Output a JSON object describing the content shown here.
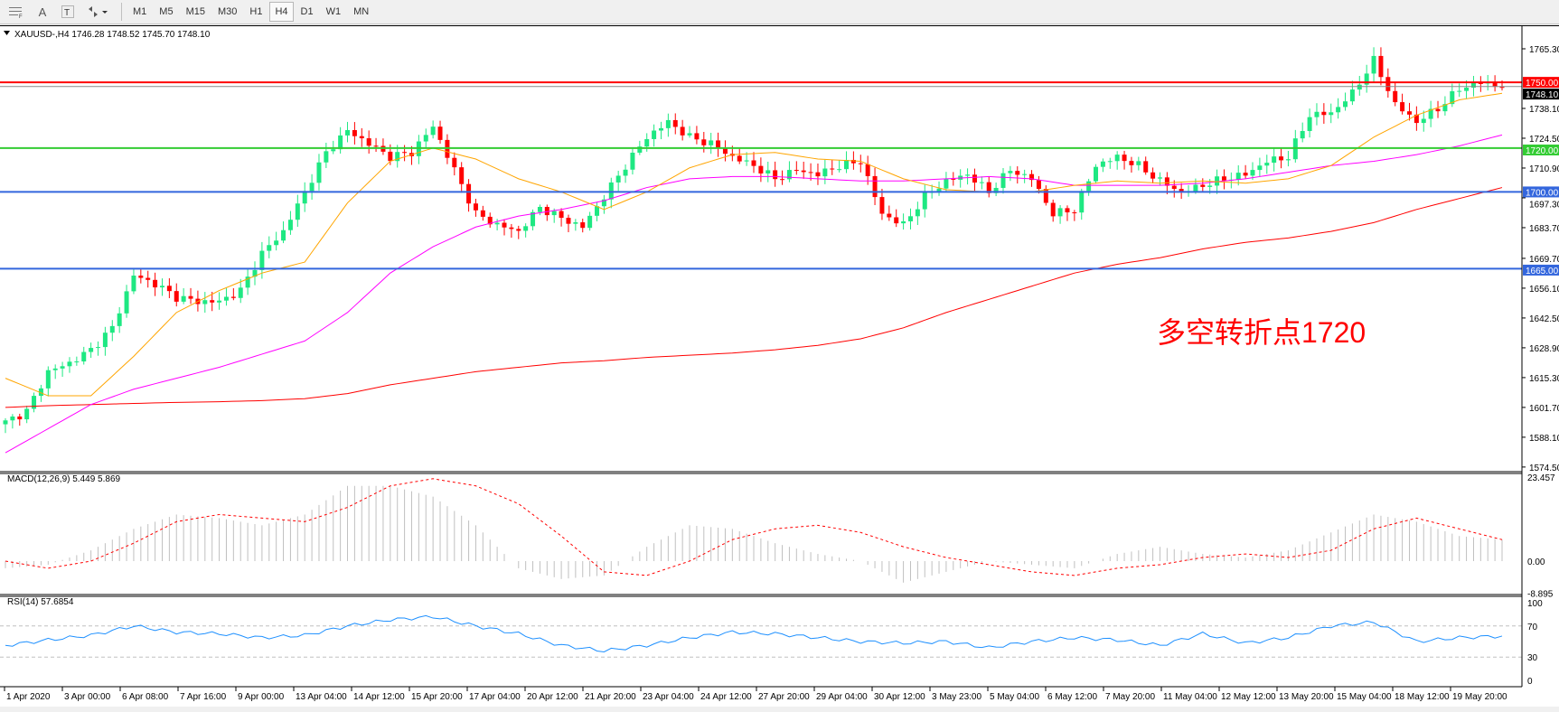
{
  "toolbar": {
    "icons": [
      "periods-grid-icon",
      "text-icon",
      "text-label-icon",
      "arrows-icon"
    ],
    "text_tool_label": "A",
    "timeframes": [
      "M1",
      "M5",
      "M15",
      "M30",
      "H1",
      "H4",
      "D1",
      "W1",
      "MN"
    ],
    "active_timeframe": "H4"
  },
  "chart_header": "XAUUSD-,H4  1746.28 1748.52 1745.70 1748.10",
  "annotation": "多空转折点1720",
  "macd_label": "MACD(12,26,9) 5.449 5.869",
  "rsi_label": "RSI(14) 57.6854",
  "colors": {
    "bull": "#1ee882",
    "bear": "#ff0000",
    "ma_fast": "#ffa500",
    "ma_mid": "#ff00ff",
    "ma_slow": "#ff0000",
    "rsi": "#1e90ff",
    "macd_hist": "#c0c0c0",
    "macd_signal": "#ff0000"
  },
  "chart_data": {
    "type": "candlestick",
    "symbol": "XAUUSD-",
    "timeframe": "H4",
    "price_ylim": [
      1574.5,
      1765.3
    ],
    "price_ticks": [
      "1765.30",
      "1738.10",
      "1724.50",
      "1710.90",
      "1697.30",
      "1683.70",
      "1669.70",
      "1656.10",
      "1642.50",
      "1628.90",
      "1615.30",
      "1601.70",
      "1588.10",
      "1574.50"
    ],
    "levels": [
      {
        "value": 1750.0,
        "label": "1750.00",
        "color": "#ff0000"
      },
      {
        "value": 1720.0,
        "label": "1720.00",
        "color": "#33cc33"
      },
      {
        "value": 1700.0,
        "label": "1700.00",
        "color": "#3366dd"
      },
      {
        "value": 1665.0,
        "label": "1665.00",
        "color": "#3366dd"
      }
    ],
    "current_price": {
      "value": 1748.1,
      "label": "1748.10"
    },
    "closes": [
      1595,
      1600,
      1618,
      1622,
      1628,
      1638,
      1662,
      1658,
      1652,
      1650,
      1650,
      1655,
      1672,
      1682,
      1700,
      1718,
      1728,
      1722,
      1716,
      1718,
      1730,
      1710,
      1690,
      1685,
      1682,
      1693,
      1688,
      1684,
      1698,
      1712,
      1725,
      1732,
      1725,
      1722,
      1716,
      1712,
      1706,
      1710,
      1708,
      1712,
      1714,
      1690,
      1685,
      1698,
      1705,
      1708,
      1700,
      1710,
      1706,
      1690,
      1692,
      1712,
      1716,
      1712,
      1705,
      1700,
      1703,
      1706,
      1708,
      1714,
      1716,
      1735,
      1736,
      1745,
      1760,
      1740,
      1732,
      1738,
      1747,
      1750,
      1748.1
    ],
    "ma_slow": [
      1601.7,
      1602.5,
      1603,
      1603.5,
      1604,
      1604.3,
      1604.8,
      1605.7,
      1608,
      1612,
      1615,
      1618,
      1620,
      1622,
      1623,
      1624.5,
      1625.5,
      1626.5,
      1628,
      1630,
      1633,
      1638,
      1645,
      1651,
      1657,
      1663,
      1667,
      1670,
      1674,
      1677,
      1679,
      1682,
      1686,
      1692,
      1697,
      1702
    ],
    "ma_mid": [
      1581,
      1592,
      1603,
      1610,
      1615,
      1620,
      1626,
      1632,
      1645,
      1663,
      1675,
      1684,
      1689,
      1692,
      1696,
      1702,
      1706,
      1707,
      1707,
      1706,
      1705,
      1705,
      1706,
      1707,
      1706,
      1703,
      1703,
      1703,
      1704,
      1706,
      1709,
      1712,
      1714,
      1717,
      1721,
      1726
    ],
    "ma_fast": [
      1615,
      1607,
      1607,
      1625,
      1645,
      1655,
      1663,
      1668,
      1695,
      1714,
      1720,
      1715,
      1706,
      1700,
      1692,
      1700,
      1711,
      1717,
      1718,
      1715,
      1714,
      1706,
      1701,
      1700,
      1700,
      1703,
      1705,
      1704,
      1705,
      1704,
      1706,
      1712,
      1725,
      1735,
      1742,
      1745
    ],
    "macd": {
      "ylim": [
        -8.895,
        23.457
      ],
      "ticks": [
        "23.457",
        "0.00",
        "-8.895"
      ],
      "histogram": [
        -2,
        -1,
        3,
        9,
        13,
        12,
        10,
        13,
        21,
        21,
        18,
        10,
        -2,
        -5,
        -4,
        4,
        10,
        9,
        5,
        2,
        0,
        -6,
        -3,
        0,
        -1,
        -2,
        2,
        4,
        2,
        1,
        3,
        8,
        13,
        11,
        7,
        6
      ],
      "signal": [
        0,
        -2,
        0,
        5,
        11,
        13,
        12,
        11,
        15,
        21,
        23,
        21,
        16,
        7,
        -3,
        -4,
        0,
        6,
        9,
        10,
        8,
        4,
        1,
        -1,
        -3,
        -4,
        -2,
        -1,
        1,
        2,
        1,
        3,
        9,
        12,
        9,
        6
      ]
    },
    "rsi": {
      "ylim": [
        0,
        100
      ],
      "ticks": [
        "100",
        "70",
        "30",
        "0"
      ],
      "levels": [
        70,
        30
      ],
      "values": [
        45,
        52,
        58,
        70,
        62,
        60,
        55,
        58,
        70,
        78,
        82,
        70,
        60,
        45,
        38,
        45,
        55,
        62,
        60,
        55,
        50,
        48,
        50,
        42,
        50,
        55,
        52,
        45,
        60,
        48,
        55,
        70,
        75,
        50,
        55,
        57
      ]
    },
    "x_labels": [
      "1 Apr 2020",
      "3 Apr 00:00",
      "6 Apr 08:00",
      "7 Apr 16:00",
      "9 Apr 00:00",
      "13 Apr 04:00",
      "14 Apr 12:00",
      "15 Apr 20:00",
      "17 Apr 04:00",
      "20 Apr 12:00",
      "21 Apr 20:00",
      "23 Apr 04:00",
      "24 Apr 12:00",
      "27 Apr 20:00",
      "29 Apr 04:00",
      "30 Apr 12:00",
      "3 May 23:00",
      "5 May 04:00",
      "6 May 12:00",
      "7 May 20:00",
      "11 May 04:00",
      "12 May 12:00",
      "13 May 20:00",
      "15 May 04:00",
      "18 May 12:00",
      "19 May 20:00"
    ]
  }
}
